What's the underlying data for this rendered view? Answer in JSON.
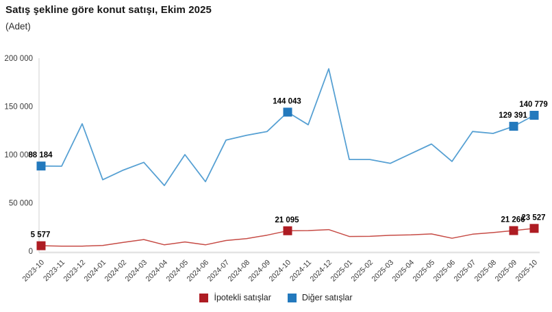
{
  "header": {
    "title": "Satış şekline göre konut satışı, Ekim 2025",
    "subtitle": "(Adet)"
  },
  "chart_data": {
    "type": "line",
    "title": "Satış şekline göre konut satışı, Ekim 2025",
    "subtitle": "(Adet)",
    "xlabel": "",
    "ylabel": "Adet",
    "ylim": [
      0,
      200000
    ],
    "grid": false,
    "legend_position": "bottom",
    "x": [
      "2023-10",
      "2023-11",
      "2023-12",
      "2024-01",
      "2024-02",
      "2024-03",
      "2024-04",
      "2024-05",
      "2024-06",
      "2024-07",
      "2024-08",
      "2024-09",
      "2024-10",
      "2024-11",
      "2024-12",
      "2025-01",
      "2025-02",
      "2025-03",
      "2025-04",
      "2025-05",
      "2025-06",
      "2025-07",
      "2025-08",
      "2025-09",
      "2025-10"
    ],
    "yticks": [
      {
        "value": 0,
        "label": "0"
      },
      {
        "value": 50000,
        "label": "50 000"
      },
      {
        "value": 100000,
        "label": "100 000"
      },
      {
        "value": 150000,
        "label": "150 000"
      },
      {
        "value": 200000,
        "label": "200 000"
      }
    ],
    "series": [
      {
        "name": "İpotekli satışlar",
        "line_color": "#c64a44",
        "marker_color": "#ae1c23",
        "values": [
          5577,
          5100,
          5200,
          5900,
          9000,
          12000,
          6500,
          9500,
          6500,
          11000,
          13000,
          16500,
          21095,
          21300,
          22300,
          15200,
          15300,
          16400,
          16800,
          17800,
          13300,
          17500,
          19200,
          21266,
          23527
        ],
        "labeled_points": [
          {
            "index": 0,
            "label": "5 577"
          },
          {
            "index": 12,
            "label": "21 095"
          },
          {
            "index": 23,
            "label": "21 266"
          },
          {
            "index": 24,
            "label": "23 527"
          }
        ]
      },
      {
        "name": "Diğer satışlar",
        "line_color": "#56a0d3",
        "marker_color": "#2379bd",
        "values": [
          88184,
          88000,
          132000,
          74000,
          84000,
          92000,
          68000,
          100000,
          72000,
          115000,
          120000,
          124000,
          144043,
          131000,
          189000,
          95000,
          95000,
          91000,
          101000,
          111000,
          93000,
          124000,
          122000,
          129391,
          140779
        ],
        "labeled_points": [
          {
            "index": 0,
            "label": "88 184"
          },
          {
            "index": 12,
            "label": "144 043"
          },
          {
            "index": 23,
            "label": "129 391"
          },
          {
            "index": 24,
            "label": "140 779"
          }
        ]
      }
    ],
    "colors": {
      "axis_line": "#e3e3e3",
      "tick_text": "#3a3a3a",
      "data_label": "#000000"
    }
  }
}
